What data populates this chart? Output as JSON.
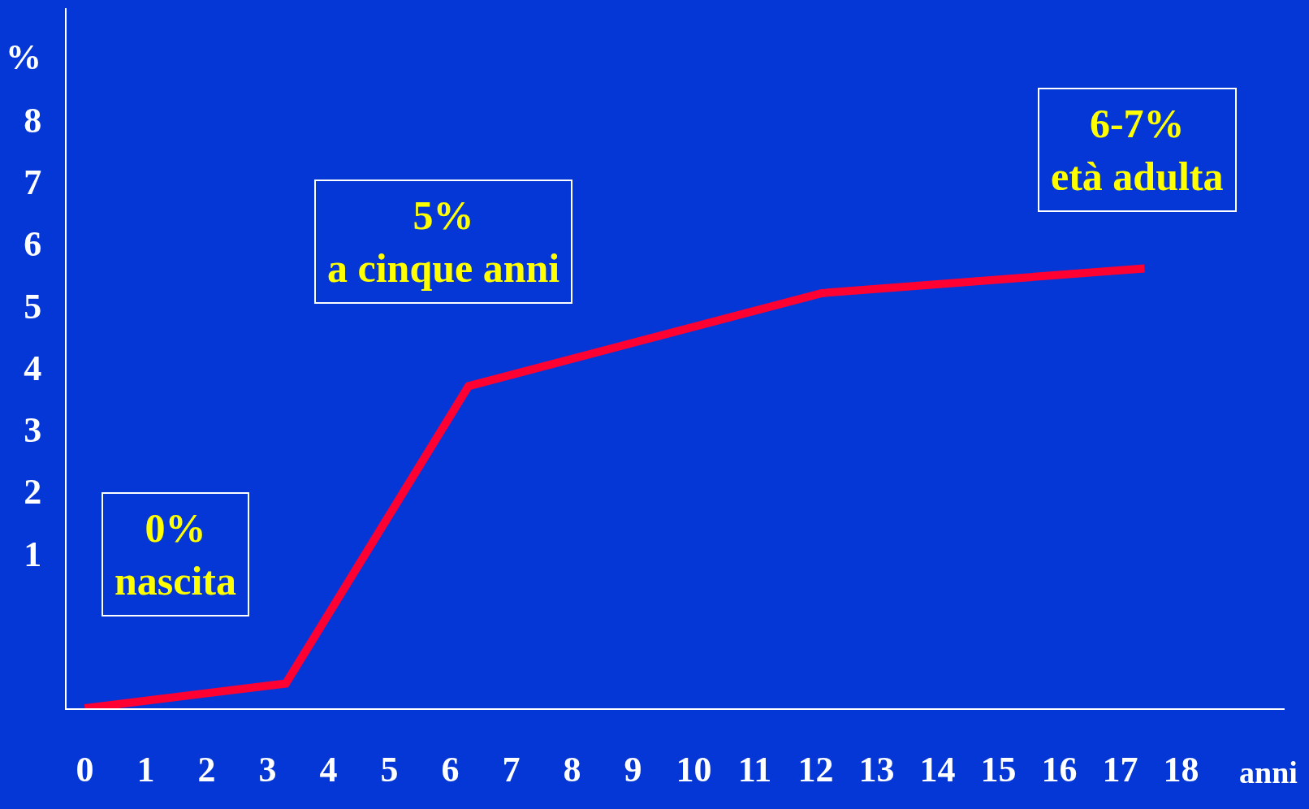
{
  "chart_data": {
    "type": "line",
    "x": [
      0,
      3.3,
      6.3,
      12.1,
      17.4
    ],
    "series": [
      {
        "color": "#ff0033",
        "values": [
          -1.5,
          -1.1,
          3.7,
          5.2,
          5.6
        ]
      }
    ],
    "xlim": [
      -0.3,
      19.7
    ],
    "ylim": [
      -1.5,
      9.8
    ],
    "xticks": [
      0,
      1,
      2,
      3,
      4,
      5,
      6,
      7,
      8,
      9,
      10,
      11,
      12,
      13,
      14,
      15,
      16,
      17,
      18
    ],
    "yticks": [
      1,
      2,
      3,
      4,
      5,
      6,
      7,
      8
    ],
    "xlabel": "anni",
    "ylabel": "%",
    "annotations": [
      "0%\nnascita",
      "5%\na cinque anni",
      "6-7%\netà adulta"
    ],
    "marker": "none",
    "line_style": "solid"
  }
}
